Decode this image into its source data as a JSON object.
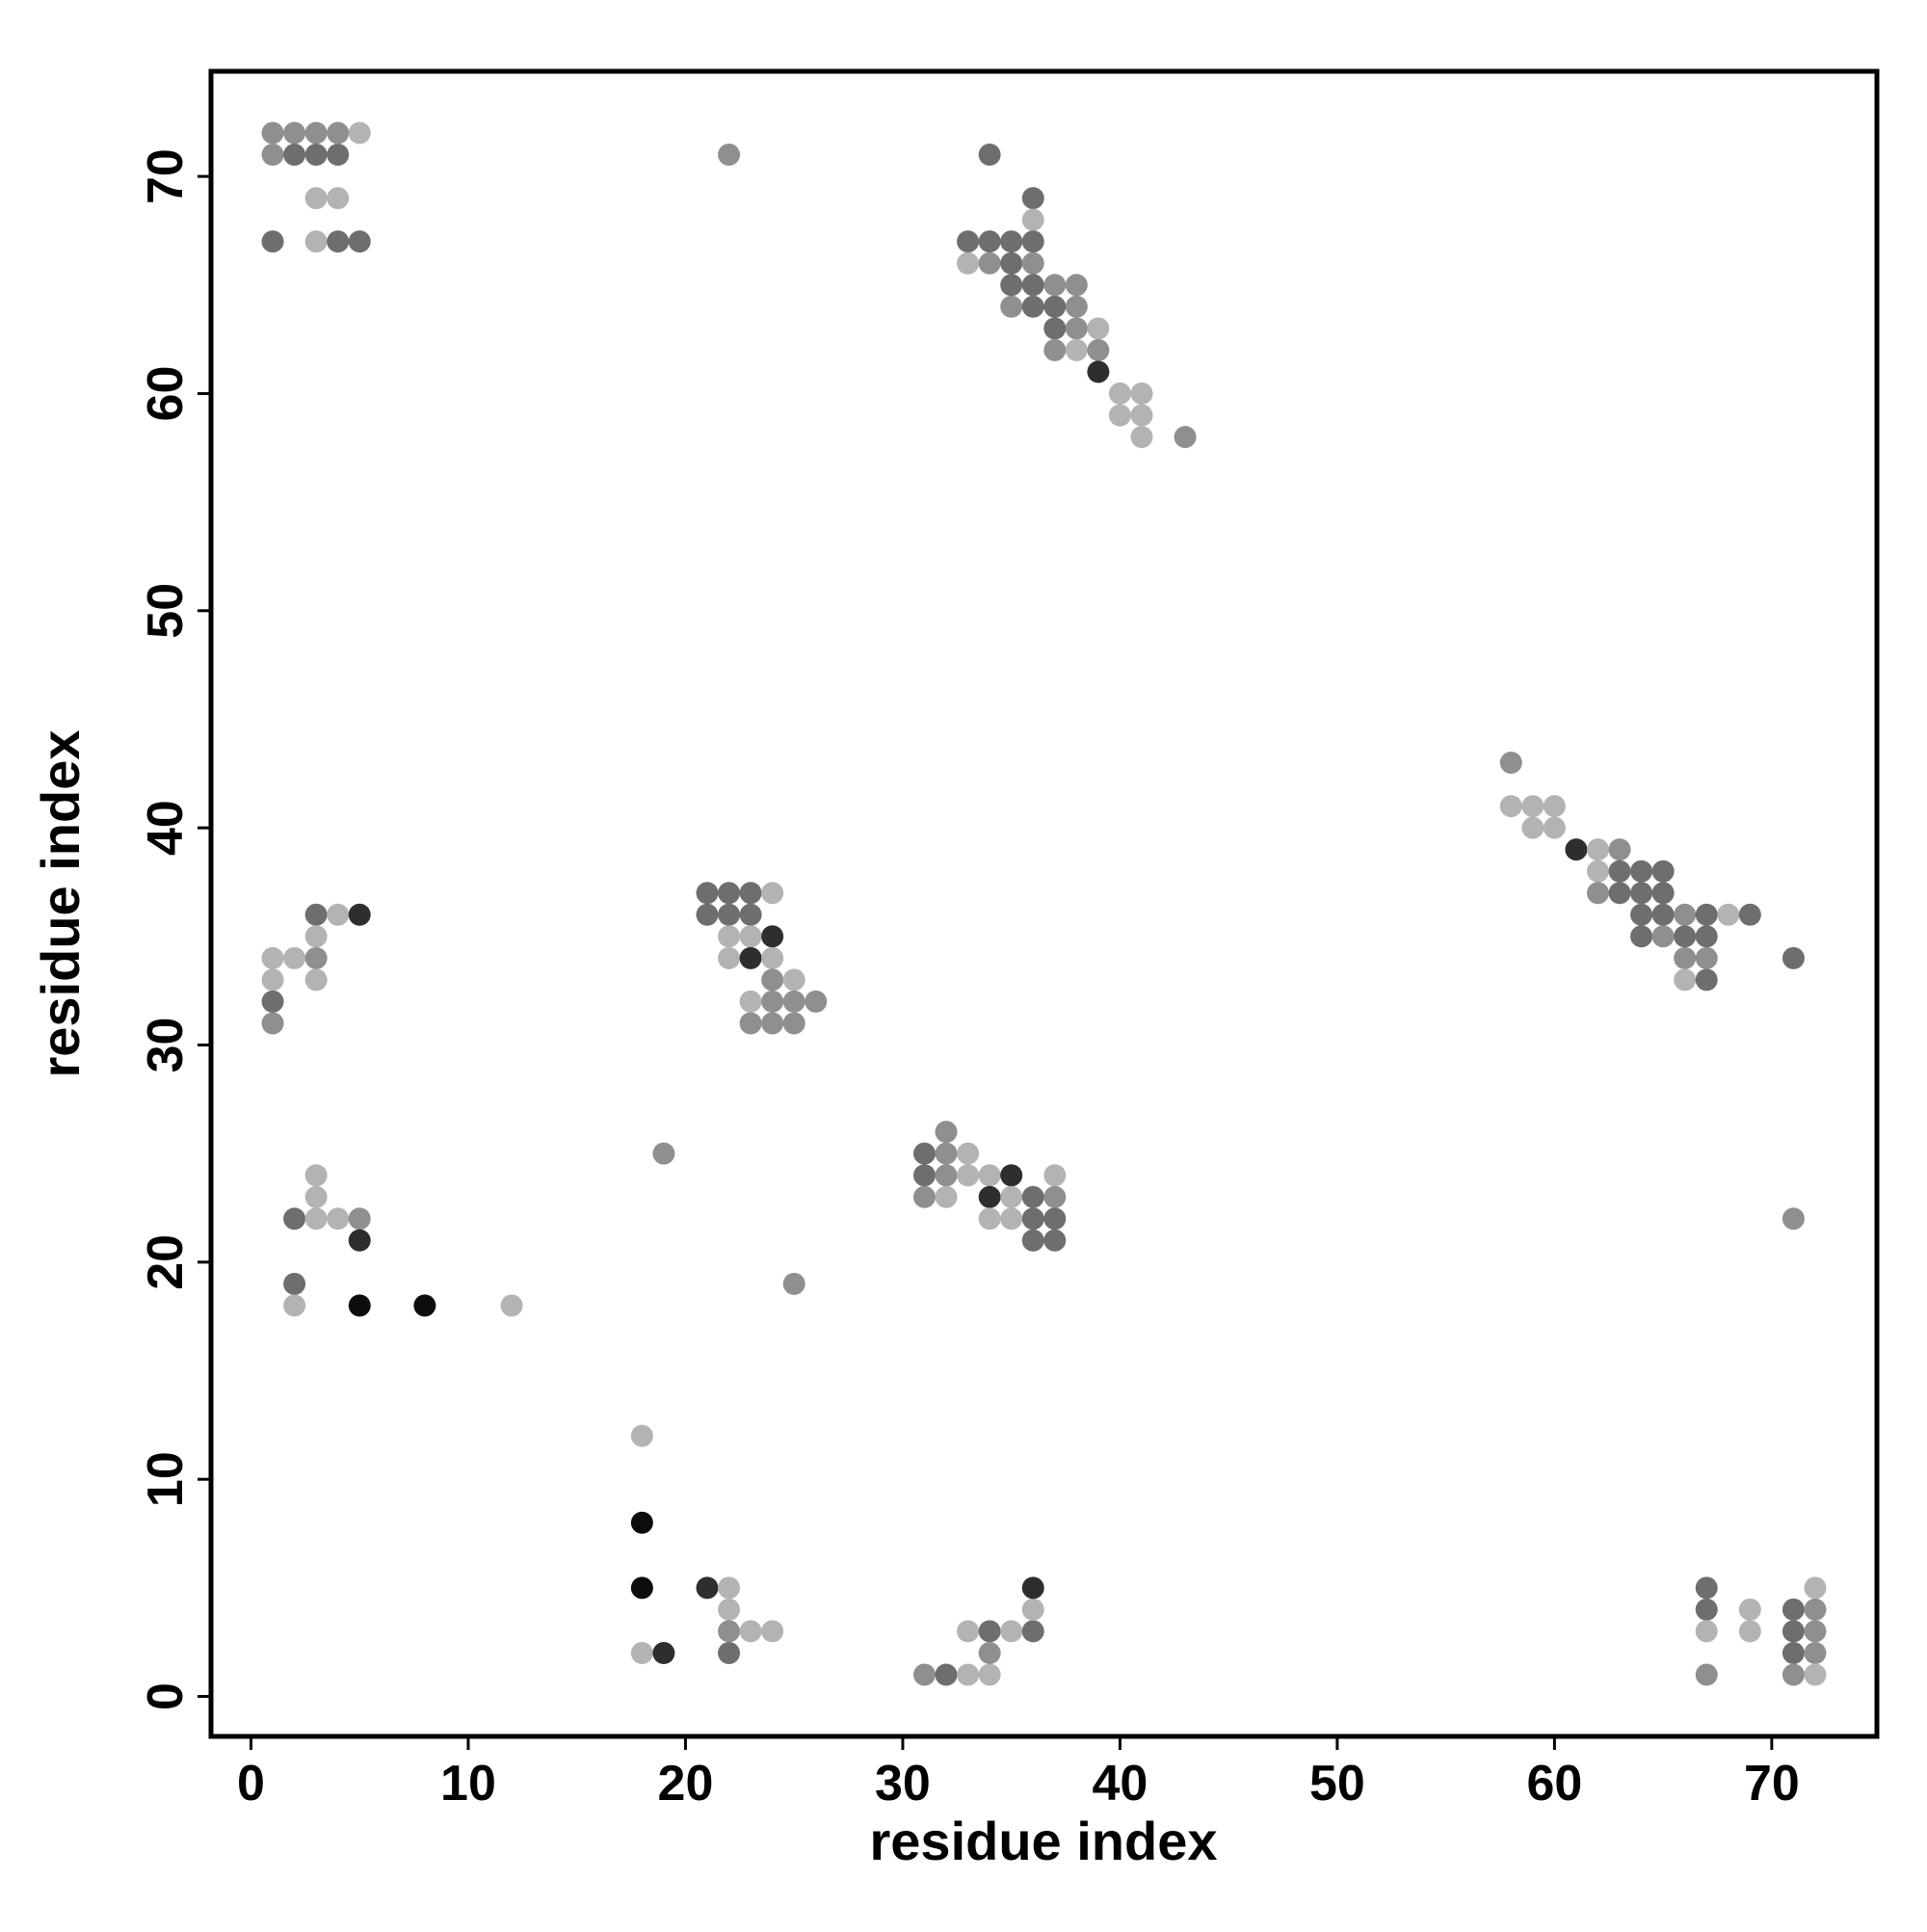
{
  "chart_data": {
    "type": "scatter",
    "xlabel": "residue index",
    "ylabel": "residue index",
    "xlim": [
      -1.84,
      74.84
    ],
    "ylim": [
      -1.84,
      74.84
    ],
    "xticks": [
      0,
      10,
      20,
      30,
      40,
      50,
      60,
      70
    ],
    "yticks": [
      0,
      10,
      20,
      30,
      40,
      50,
      60,
      70
    ],
    "grid": false,
    "x": [
      1,
      2,
      3,
      4,
      5,
      1,
      2,
      3,
      4,
      3,
      4,
      1,
      3,
      4,
      5,
      22,
      34,
      36,
      36,
      33,
      34,
      35,
      36,
      33,
      34,
      35,
      36,
      35,
      36,
      37,
      38,
      35,
      36,
      37,
      38,
      37,
      38,
      39,
      37,
      38,
      39,
      39,
      40,
      41,
      40,
      41,
      41,
      43,
      58,
      58,
      59,
      60,
      59,
      60,
      61,
      62,
      63,
      62,
      63,
      64,
      65,
      62,
      63,
      64,
      65,
      64,
      65,
      66,
      67,
      68,
      69,
      64,
      65,
      66,
      67,
      66,
      67,
      71,
      66,
      67,
      3,
      4,
      5,
      3,
      1,
      2,
      3,
      1,
      3,
      1,
      1,
      21,
      22,
      23,
      24,
      21,
      22,
      23,
      22,
      23,
      24,
      22,
      23,
      24,
      24,
      25,
      23,
      24,
      25,
      26,
      23,
      24,
      25,
      32,
      31,
      32,
      33,
      31,
      32,
      33,
      34,
      35,
      37,
      31,
      32,
      34,
      35,
      36,
      37,
      34,
      35,
      36,
      37,
      36,
      37,
      19,
      25,
      71,
      3,
      3,
      2,
      3,
      4,
      5,
      5,
      2,
      2,
      5,
      8,
      12,
      18,
      18,
      18,
      21,
      22,
      22,
      22,
      23,
      24,
      22,
      18,
      19,
      31,
      32,
      33,
      34,
      33,
      34,
      35,
      36,
      34,
      36,
      36,
      67,
      67,
      67,
      67,
      69,
      69,
      71,
      71,
      71,
      71,
      72,
      72,
      72,
      72,
      72
    ],
    "values": [
      72,
      72,
      72,
      72,
      72,
      71,
      71,
      71,
      71,
      69,
      69,
      67,
      67,
      67,
      67,
      71,
      71,
      69,
      68,
      67,
      67,
      67,
      67,
      66,
      66,
      66,
      66,
      65,
      65,
      65,
      65,
      64,
      64,
      64,
      64,
      63,
      63,
      63,
      62,
      62,
      62,
      61,
      60,
      60,
      59,
      59,
      58,
      58,
      43,
      41,
      41,
      41,
      40,
      40,
      39,
      39,
      39,
      38,
      38,
      38,
      38,
      37,
      37,
      37,
      37,
      36,
      36,
      36,
      36,
      36,
      36,
      35,
      35,
      35,
      35,
      34,
      34,
      34,
      33,
      33,
      36,
      36,
      36,
      35,
      34,
      34,
      34,
      33,
      33,
      32,
      31,
      37,
      37,
      37,
      37,
      36,
      36,
      36,
      35,
      35,
      35,
      34,
      34,
      34,
      33,
      33,
      32,
      32,
      32,
      32,
      31,
      31,
      31,
      26,
      25,
      25,
      25,
      24,
      24,
      24,
      24,
      24,
      24,
      23,
      23,
      23,
      23,
      23,
      23,
      22,
      22,
      22,
      22,
      21,
      21,
      25,
      19,
      22,
      24,
      23,
      22,
      22,
      22,
      22,
      21,
      19,
      18,
      18,
      18,
      18,
      12,
      8,
      5,
      5,
      5,
      4,
      3,
      3,
      3,
      2,
      2,
      2,
      1,
      1,
      1,
      1,
      3,
      3,
      3,
      3,
      2,
      4,
      5,
      5,
      4,
      3,
      1,
      4,
      3,
      4,
      3,
      2,
      1,
      5,
      4,
      3,
      2,
      1
    ],
    "colors": [
      "#8f8f8f",
      "#8f8f8f",
      "#8f8f8f",
      "#8f8f8f",
      "#b3b3b3",
      "#8f8f8f",
      "#6e6e6e",
      "#6e6e6e",
      "#6e6e6e",
      "#b3b3b3",
      "#b3b3b3",
      "#6e6e6e",
      "#b3b3b3",
      "#6e6e6e",
      "#6e6e6e",
      "#8f8f8f",
      "#6e6e6e",
      "#6e6e6e",
      "#b3b3b3",
      "#6e6e6e",
      "#6e6e6e",
      "#6e6e6e",
      "#6e6e6e",
      "#b3b3b3",
      "#8f8f8f",
      "#6e6e6e",
      "#8f8f8f",
      "#6e6e6e",
      "#6e6e6e",
      "#8f8f8f",
      "#8f8f8f",
      "#8f8f8f",
      "#6e6e6e",
      "#6e6e6e",
      "#8f8f8f",
      "#6e6e6e",
      "#8f8f8f",
      "#b3b3b3",
      "#8f8f8f",
      "#b3b3b3",
      "#8f8f8f",
      "#2e2e2e",
      "#b3b3b3",
      "#b3b3b3",
      "#b3b3b3",
      "#b3b3b3",
      "#b3b3b3",
      "#8f8f8f",
      "#8f8f8f",
      "#b3b3b3",
      "#b3b3b3",
      "#b3b3b3",
      "#b3b3b3",
      "#b3b3b3",
      "#2e2e2e",
      "#b3b3b3",
      "#8f8f8f",
      "#b3b3b3",
      "#6e6e6e",
      "#6e6e6e",
      "#6e6e6e",
      "#8f8f8f",
      "#6e6e6e",
      "#6e6e6e",
      "#6e6e6e",
      "#6e6e6e",
      "#6e6e6e",
      "#8f8f8f",
      "#6e6e6e",
      "#b3b3b3",
      "#6e6e6e",
      "#6e6e6e",
      "#8f8f8f",
      "#6e6e6e",
      "#6e6e6e",
      "#8f8f8f",
      "#8f8f8f",
      "#6e6e6e",
      "#b3b3b3",
      "#6e6e6e",
      "#6e6e6e",
      "#b3b3b3",
      "#2e2e2e",
      "#b3b3b3",
      "#b3b3b3",
      "#b3b3b3",
      "#8f8f8f",
      "#b3b3b3",
      "#b3b3b3",
      "#6e6e6e",
      "#8f8f8f",
      "#6e6e6e",
      "#6e6e6e",
      "#6e6e6e",
      "#b3b3b3",
      "#6e6e6e",
      "#6e6e6e",
      "#6e6e6e",
      "#b3b3b3",
      "#b3b3b3",
      "#2e2e2e",
      "#b3b3b3",
      "#2e2e2e",
      "#b3b3b3",
      "#8f8f8f",
      "#b3b3b3",
      "#b3b3b3",
      "#8f8f8f",
      "#8f8f8f",
      "#8f8f8f",
      "#8f8f8f",
      "#8f8f8f",
      "#8f8f8f",
      "#8f8f8f",
      "#6e6e6e",
      "#8f8f8f",
      "#b3b3b3",
      "#6e6e6e",
      "#8f8f8f",
      "#b3b3b3",
      "#b3b3b3",
      "#2e2e2e",
      "#b3b3b3",
      "#8f8f8f",
      "#b3b3b3",
      "#2e2e2e",
      "#b3b3b3",
      "#6e6e6e",
      "#8f8f8f",
      "#b3b3b3",
      "#b3b3b3",
      "#6e6e6e",
      "#6e6e6e",
      "#6e6e6e",
      "#6e6e6e",
      "#8f8f8f",
      "#8f8f8f",
      "#8f8f8f",
      "#b3b3b3",
      "#b3b3b3",
      "#6e6e6e",
      "#b3b3b3",
      "#b3b3b3",
      "#8f8f8f",
      "#2e2e2e",
      "#6e6e6e",
      "#b3b3b3",
      "#0d0d0d",
      "#0d0d0d",
      "#b3b3b3",
      "#b3b3b3",
      "#0d0d0d",
      "#0d0d0d",
      "#2e2e2e",
      "#b3b3b3",
      "#b3b3b3",
      "#8f8f8f",
      "#b3b3b3",
      "#b3b3b3",
      "#6e6e6e",
      "#b3b3b3",
      "#2e2e2e",
      "#8f8f8f",
      "#6e6e6e",
      "#b3b3b3",
      "#b3b3b3",
      "#b3b3b3",
      "#6e6e6e",
      "#b3b3b3",
      "#6e6e6e",
      "#8f8f8f",
      "#b3b3b3",
      "#2e2e2e",
      "#6e6e6e",
      "#6e6e6e",
      "#b3b3b3",
      "#8f8f8f",
      "#b3b3b3",
      "#b3b3b3",
      "#6e6e6e",
      "#6e6e6e",
      "#6e6e6e",
      "#8f8f8f",
      "#b3b3b3",
      "#8f8f8f",
      "#8f8f8f",
      "#8f8f8f",
      "#b3b3b3"
    ]
  }
}
